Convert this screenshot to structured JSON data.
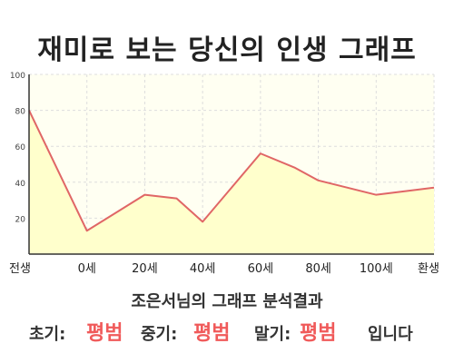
{
  "title": "재미로 보는 당신의 인생 그래프",
  "summary": "조은서님의 그래프 분석결과",
  "results": {
    "early_label": "초기:",
    "early_value": "평범",
    "mid_label": "중기:",
    "mid_value": "평범",
    "late_label": "말기:",
    "late_value": "평범",
    "suffix": "입니다"
  },
  "colors": {
    "line": "#e06666",
    "fill": "#ffffcc",
    "axis": "#333333",
    "grid": "#dddddd",
    "highlight": "#f05a5a"
  },
  "chart_data": {
    "type": "area",
    "title": "",
    "xlabel": "",
    "ylabel": "",
    "categories": [
      "전생",
      "0세",
      "20세",
      "40세",
      "60세",
      "80세",
      "100세",
      "환생"
    ],
    "x": [
      0,
      1,
      2,
      2.55,
      3,
      4,
      4.6,
      5,
      6,
      7
    ],
    "y": [
      80,
      13,
      33,
      31,
      18,
      56,
      48,
      41,
      33,
      37
    ],
    "ylim": [
      0,
      100
    ],
    "yticks": [
      "20",
      "40",
      "60",
      "80",
      "100"
    ],
    "grid": true
  }
}
